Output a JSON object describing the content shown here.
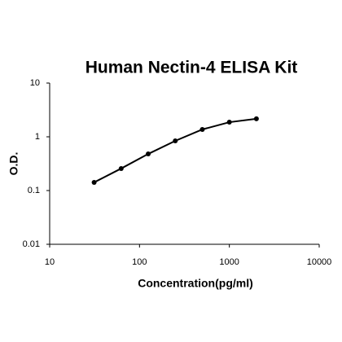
{
  "chart_data": {
    "type": "line",
    "title": "Human Nectin-4 ELISA Kit",
    "x_label": "Concentration(pg/ml)",
    "y_label": "O.D.",
    "x": [
      31.25,
      62.5,
      125,
      250,
      500,
      1000,
      2000
    ],
    "series": [
      {
        "color": "#000000",
        "values": [
          0.142,
          0.257,
          0.48,
          0.84,
          1.37,
          1.87,
          2.16
        ]
      }
    ],
    "xlim": [
      10,
      10000
    ],
    "xticks": [
      10,
      100,
      1000,
      10000
    ],
    "ylim": [
      0.01,
      10
    ],
    "yticks": [
      0.01,
      0.1,
      1,
      10
    ],
    "xscale": "log",
    "yscale": "log"
  }
}
